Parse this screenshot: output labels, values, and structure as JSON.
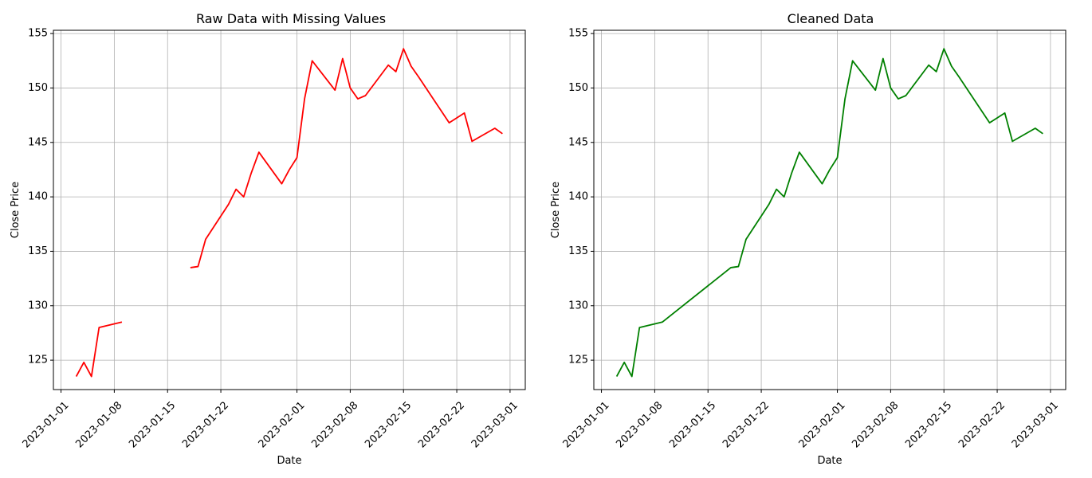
{
  "chart_data": [
    {
      "type": "line",
      "title": "Raw Data with Missing Values",
      "xlabel": "Date",
      "ylabel": "Close Price",
      "x_ticks": [
        "2023-01-01",
        "2023-01-08",
        "2023-01-15",
        "2023-01-22",
        "2023-02-01",
        "2023-02-08",
        "2023-02-15",
        "2023-02-22",
        "2023-03-01"
      ],
      "y_ticks": [
        "125",
        "130",
        "135",
        "140",
        "145",
        "150",
        "155"
      ],
      "xlim": [
        "2022-12-31",
        "2023-03-03"
      ],
      "ylim": [
        122.3,
        155.3
      ],
      "grid": true,
      "line_color": "#ff0000",
      "series": [
        {
          "points": [
            [
              "2023-01-03",
              123.5
            ],
            [
              "2023-01-04",
              124.8
            ],
            [
              "2023-01-05",
              123.5
            ],
            [
              "2023-01-06",
              128.0
            ],
            [
              "2023-01-09",
              128.5
            ],
            [
              "2023-01-10",
              null
            ],
            [
              "2023-01-11",
              null
            ],
            [
              "2023-01-12",
              null
            ],
            [
              "2023-01-13",
              null
            ],
            [
              "2023-01-16",
              null
            ],
            [
              "2023-01-17",
              null
            ],
            [
              "2023-01-18",
              133.5
            ],
            [
              "2023-01-19",
              133.6
            ],
            [
              "2023-01-20",
              136.1
            ],
            [
              "2023-01-23",
              139.3
            ],
            [
              "2023-01-24",
              140.7
            ],
            [
              "2023-01-25",
              140.0
            ],
            [
              "2023-01-26",
              142.2
            ],
            [
              "2023-01-27",
              144.1
            ],
            [
              "2023-01-30",
              141.2
            ],
            [
              "2023-01-31",
              142.5
            ],
            [
              "2023-02-01",
              143.6
            ],
            [
              "2023-02-02",
              149.0
            ],
            [
              "2023-02-03",
              152.5
            ],
            [
              "2023-02-06",
              149.8
            ],
            [
              "2023-02-07",
              152.7
            ],
            [
              "2023-02-08",
              150.0
            ],
            [
              "2023-02-09",
              149.0
            ],
            [
              "2023-02-10",
              149.3
            ],
            [
              "2023-02-13",
              152.1
            ],
            [
              "2023-02-14",
              151.5
            ],
            [
              "2023-02-15",
              153.6
            ],
            [
              "2023-02-16",
              152.0
            ],
            [
              "2023-02-17",
              151.0
            ],
            [
              "2023-02-21",
              146.8
            ],
            [
              "2023-02-23",
              147.7
            ],
            [
              "2023-02-24",
              145.1
            ],
            [
              "2023-02-27",
              146.3
            ],
            [
              "2023-02-28",
              145.8
            ]
          ]
        }
      ]
    },
    {
      "type": "line",
      "title": "Cleaned Data",
      "xlabel": "Date",
      "ylabel": "Close Price",
      "x_ticks": [
        "2023-01-01",
        "2023-01-08",
        "2023-01-15",
        "2023-01-22",
        "2023-02-01",
        "2023-02-08",
        "2023-02-15",
        "2023-02-22",
        "2023-03-01"
      ],
      "y_ticks": [
        "125",
        "130",
        "135",
        "140",
        "145",
        "150",
        "155"
      ],
      "xlim": [
        "2022-12-31",
        "2023-03-03"
      ],
      "ylim": [
        122.3,
        155.3
      ],
      "grid": true,
      "line_color": "#008000",
      "series": [
        {
          "points": [
            [
              "2023-01-03",
              123.5
            ],
            [
              "2023-01-04",
              124.8
            ],
            [
              "2023-01-05",
              123.5
            ],
            [
              "2023-01-06",
              128.0
            ],
            [
              "2023-01-09",
              128.5
            ],
            [
              "2023-01-18",
              133.5
            ],
            [
              "2023-01-19",
              133.6
            ],
            [
              "2023-01-20",
              136.1
            ],
            [
              "2023-01-23",
              139.3
            ],
            [
              "2023-01-24",
              140.7
            ],
            [
              "2023-01-25",
              140.0
            ],
            [
              "2023-01-26",
              142.2
            ],
            [
              "2023-01-27",
              144.1
            ],
            [
              "2023-01-30",
              141.2
            ],
            [
              "2023-01-31",
              142.5
            ],
            [
              "2023-02-01",
              143.6
            ],
            [
              "2023-02-02",
              149.0
            ],
            [
              "2023-02-03",
              152.5
            ],
            [
              "2023-02-06",
              149.8
            ],
            [
              "2023-02-07",
              152.7
            ],
            [
              "2023-02-08",
              150.0
            ],
            [
              "2023-02-09",
              149.0
            ],
            [
              "2023-02-10",
              149.3
            ],
            [
              "2023-02-13",
              152.1
            ],
            [
              "2023-02-14",
              151.5
            ],
            [
              "2023-02-15",
              153.6
            ],
            [
              "2023-02-16",
              152.0
            ],
            [
              "2023-02-17",
              151.0
            ],
            [
              "2023-02-21",
              146.8
            ],
            [
              "2023-02-23",
              147.7
            ],
            [
              "2023-02-24",
              145.1
            ],
            [
              "2023-02-27",
              146.3
            ],
            [
              "2023-02-28",
              145.8
            ]
          ]
        }
      ]
    }
  ]
}
